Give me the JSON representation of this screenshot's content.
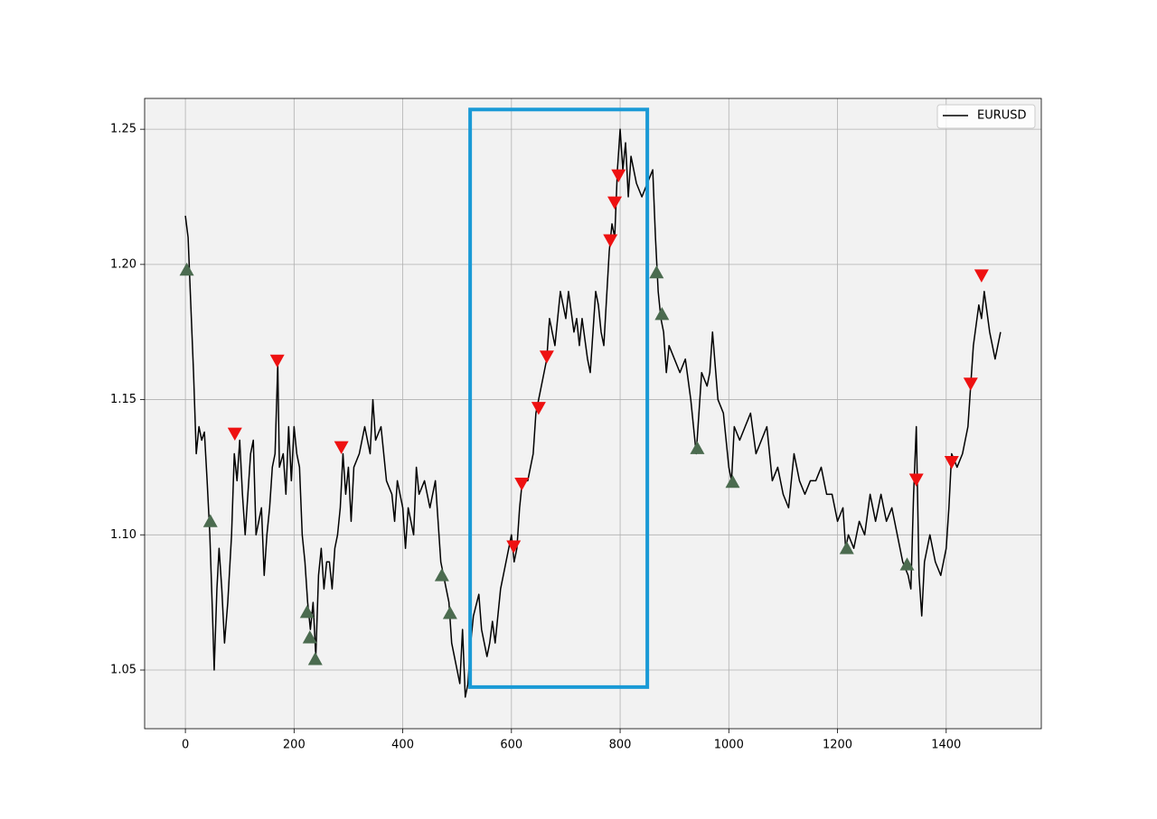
{
  "chart_data": {
    "type": "line",
    "x": [
      0,
      5,
      10,
      15,
      20,
      25,
      30,
      35,
      40,
      45,
      50,
      53,
      58,
      62,
      67,
      72,
      78,
      85,
      90,
      95,
      100,
      105,
      110,
      120,
      125,
      130,
      140,
      145,
      150,
      155,
      160,
      165,
      170,
      173,
      180,
      185,
      190,
      195,
      200,
      205,
      210,
      215,
      220,
      225,
      230,
      235,
      240,
      245,
      250,
      255,
      260,
      265,
      270,
      275,
      280,
      285,
      290,
      295,
      300,
      305,
      310,
      320,
      330,
      340,
      345,
      350,
      360,
      370,
      380,
      385,
      390,
      400,
      405,
      410,
      420,
      425,
      430,
      440,
      450,
      460,
      470,
      480,
      485,
      490,
      495,
      500,
      505,
      510,
      515,
      520,
      525,
      530,
      540,
      545,
      550,
      555,
      560,
      565,
      570,
      575,
      580,
      590,
      600,
      605,
      610,
      615,
      620,
      630,
      640,
      645,
      650,
      660,
      665,
      670,
      680,
      690,
      700,
      705,
      715,
      720,
      725,
      730,
      740,
      745,
      750,
      755,
      760,
      765,
      770,
      780,
      785,
      790,
      795,
      800,
      805,
      810,
      815,
      820,
      830,
      840,
      850,
      860,
      865,
      870,
      875,
      880,
      885,
      890,
      900,
      910,
      920,
      930,
      940,
      945,
      950,
      960,
      965,
      970,
      980,
      990,
      1000,
      1005,
      1010,
      1020,
      1030,
      1040,
      1050,
      1060,
      1070,
      1080,
      1090,
      1100,
      1110,
      1120,
      1130,
      1140,
      1150,
      1160,
      1170,
      1180,
      1190,
      1200,
      1210,
      1215,
      1220,
      1230,
      1240,
      1250,
      1260,
      1270,
      1280,
      1290,
      1300,
      1310,
      1320,
      1330,
      1335,
      1340,
      1345,
      1350,
      1355,
      1360,
      1370,
      1380,
      1390,
      1400,
      1405,
      1410,
      1420,
      1430,
      1440,
      1445,
      1450,
      1460,
      1465,
      1470,
      1480,
      1490,
      1500
    ],
    "series": [
      {
        "name": "EURUSD",
        "color": "#000000",
        "values": [
          1.218,
          1.21,
          1.185,
          1.16,
          1.13,
          1.14,
          1.135,
          1.138,
          1.12,
          1.1,
          1.07,
          1.05,
          1.08,
          1.095,
          1.08,
          1.06,
          1.075,
          1.1,
          1.13,
          1.12,
          1.135,
          1.115,
          1.1,
          1.13,
          1.135,
          1.1,
          1.11,
          1.085,
          1.1,
          1.11,
          1.125,
          1.13,
          1.163,
          1.125,
          1.13,
          1.115,
          1.14,
          1.12,
          1.14,
          1.13,
          1.125,
          1.1,
          1.09,
          1.075,
          1.065,
          1.075,
          1.055,
          1.085,
          1.095,
          1.08,
          1.09,
          1.09,
          1.08,
          1.095,
          1.1,
          1.11,
          1.13,
          1.115,
          1.125,
          1.105,
          1.125,
          1.13,
          1.14,
          1.13,
          1.15,
          1.135,
          1.14,
          1.12,
          1.115,
          1.105,
          1.12,
          1.11,
          1.095,
          1.11,
          1.1,
          1.125,
          1.115,
          1.12,
          1.11,
          1.12,
          1.09,
          1.08,
          1.075,
          1.06,
          1.055,
          1.05,
          1.045,
          1.065,
          1.04,
          1.045,
          1.06,
          1.07,
          1.078,
          1.065,
          1.06,
          1.055,
          1.06,
          1.068,
          1.06,
          1.07,
          1.08,
          1.09,
          1.1,
          1.09,
          1.095,
          1.11,
          1.12,
          1.12,
          1.13,
          1.145,
          1.15,
          1.16,
          1.165,
          1.18,
          1.17,
          1.19,
          1.18,
          1.19,
          1.175,
          1.18,
          1.17,
          1.18,
          1.165,
          1.16,
          1.175,
          1.19,
          1.185,
          1.175,
          1.17,
          1.205,
          1.215,
          1.21,
          1.235,
          1.25,
          1.235,
          1.245,
          1.225,
          1.24,
          1.23,
          1.225,
          1.23,
          1.235,
          1.21,
          1.19,
          1.18,
          1.175,
          1.16,
          1.17,
          1.165,
          1.16,
          1.165,
          1.15,
          1.13,
          1.145,
          1.16,
          1.155,
          1.16,
          1.175,
          1.15,
          1.145,
          1.125,
          1.12,
          1.14,
          1.135,
          1.14,
          1.145,
          1.13,
          1.135,
          1.14,
          1.12,
          1.125,
          1.115,
          1.11,
          1.13,
          1.12,
          1.115,
          1.12,
          1.12,
          1.125,
          1.115,
          1.115,
          1.105,
          1.11,
          1.095,
          1.1,
          1.095,
          1.105,
          1.1,
          1.115,
          1.105,
          1.115,
          1.105,
          1.11,
          1.1,
          1.09,
          1.085,
          1.08,
          1.115,
          1.14,
          1.085,
          1.07,
          1.09,
          1.1,
          1.09,
          1.085,
          1.095,
          1.11,
          1.13,
          1.125,
          1.13,
          1.14,
          1.155,
          1.17,
          1.185,
          1.18,
          1.19,
          1.175,
          1.165,
          1.175
        ]
      }
    ],
    "markers": [
      {
        "shape": "up",
        "color": "#4b6b4f",
        "x": [
          2.5,
          46,
          224,
          229,
          239,
          472,
          487,
          867,
          877,
          942,
          1007,
          1217,
          1328
        ],
        "y": [
          1.198,
          1.105,
          1.0714,
          1.062,
          1.054,
          1.085,
          1.071,
          1.197,
          1.1816,
          1.132,
          1.1195,
          1.095,
          1.089
        ]
      },
      {
        "shape": "down",
        "color": "#ee1111",
        "x": [
          91,
          169,
          287,
          604,
          619,
          650,
          665,
          782,
          790,
          797,
          1345,
          1410,
          1445,
          1465
        ],
        "y": [
          1.1375,
          1.1645,
          1.1325,
          1.0958,
          1.119,
          1.147,
          1.166,
          1.209,
          1.223,
          1.233,
          1.1205,
          1.127,
          1.156,
          1.196
        ]
      }
    ],
    "highlight": {
      "color": "#1a9ad6",
      "x": [
        524,
        850
      ],
      "y": [
        1.0437,
        1.2573
      ]
    },
    "xlim": [
      -75,
      1575
    ],
    "xticks": [
      0,
      200,
      400,
      600,
      800,
      1000,
      1200,
      1400
    ],
    "ylim": [
      1.0283,
      1.2614
    ],
    "yticks": [
      1.05,
      {
        "value": 1.1,
        "label": "1.10"
      },
      1.15,
      {
        "value": 1.2,
        "label": "1.20"
      },
      1.25
    ],
    "grid": true,
    "legend": "upper right",
    "background": "#f2f2f2"
  }
}
